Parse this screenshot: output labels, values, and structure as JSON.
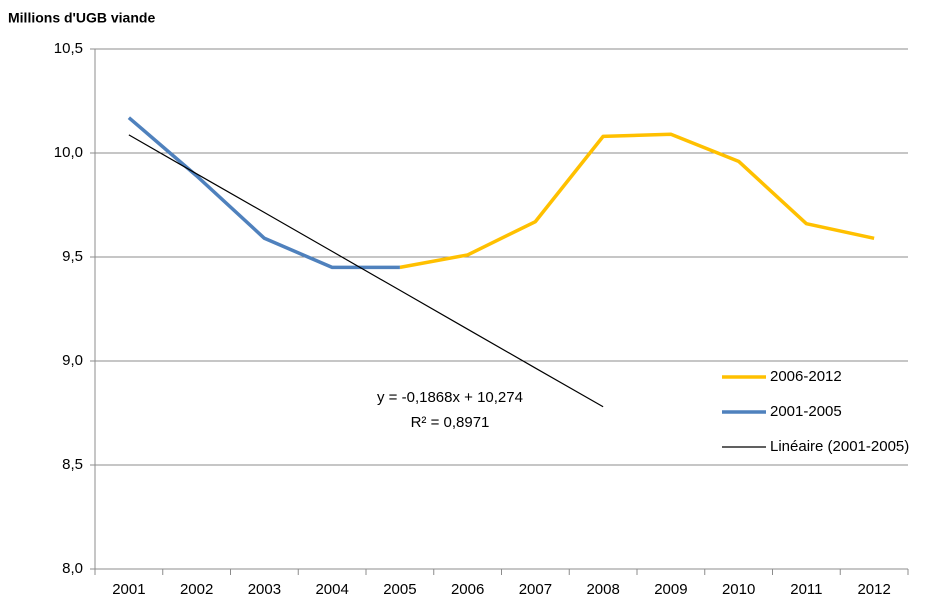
{
  "chart_data": {
    "type": "line",
    "title": "Millions d'UGB viande",
    "categories": [
      "2001",
      "2002",
      "2003",
      "2004",
      "2005",
      "2006",
      "2007",
      "2008",
      "2009",
      "2010",
      "2011",
      "2012"
    ],
    "series": [
      {
        "name": "2006-2012",
        "color": "#ffc000",
        "width": 3.5,
        "values": [
          null,
          null,
          null,
          null,
          9.45,
          9.51,
          9.67,
          10.08,
          10.09,
          9.96,
          9.66,
          9.59
        ]
      },
      {
        "name": "2001-2005",
        "color": "#4f81bd",
        "width": 3.5,
        "values": [
          10.17,
          9.89,
          9.59,
          9.45,
          9.45,
          null,
          null,
          null,
          null,
          null,
          null,
          null
        ]
      },
      {
        "name": "Linéaire (2001-2005)",
        "color": "#000000",
        "width": 1.2,
        "values": [
          10.087,
          9.9,
          9.714,
          9.527,
          9.34,
          9.153,
          8.966,
          8.78,
          null,
          null,
          null,
          null
        ]
      }
    ],
    "annotations": [
      "y = -0,1868x + 10,274",
      "R² = 0,8971"
    ],
    "ylim": [
      8,
      10.5
    ],
    "yticks": [
      {
        "value": 8,
        "label": "8,0"
      },
      {
        "value": 8.5,
        "label": "8,5"
      },
      {
        "value": 9,
        "label": "9,0"
      },
      {
        "value": 9.5,
        "label": "9,5"
      },
      {
        "value": 10,
        "label": "10,0"
      },
      {
        "value": 10.5,
        "label": "10,5"
      }
    ],
    "grid": true
  }
}
